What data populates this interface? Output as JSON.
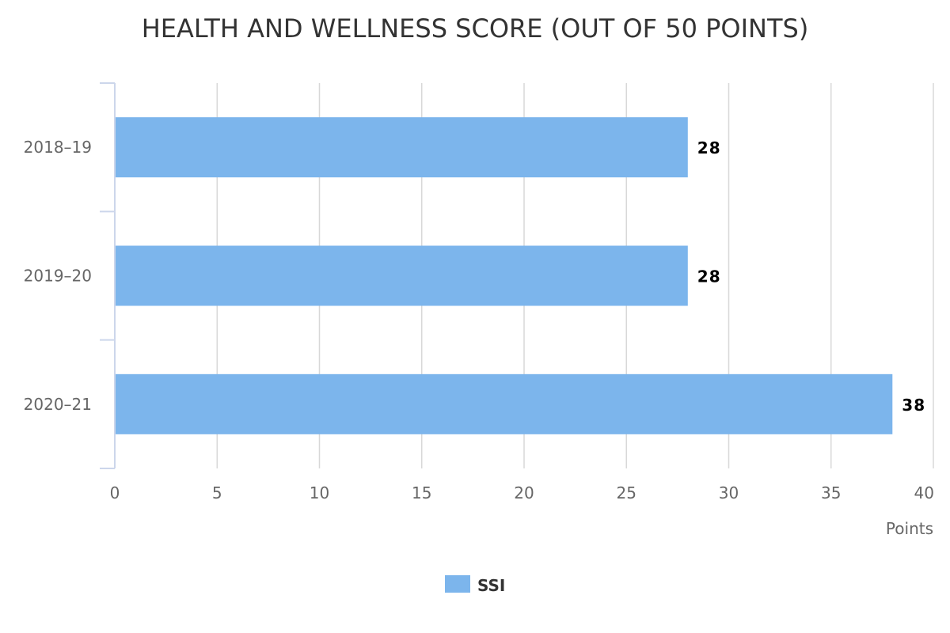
{
  "chart_data": {
    "type": "bar",
    "orientation": "horizontal",
    "title": "HEALTH AND WELLNESS SCORE (OUT OF 50 POINTS)",
    "categories": [
      "2018–19",
      "2019–20",
      "2020–21"
    ],
    "series": [
      {
        "name": "SSI",
        "values": [
          28,
          28,
          38
        ],
        "color": "#7cb5ec"
      }
    ],
    "x_ticks": [
      "0",
      "5",
      "10",
      "15",
      "20",
      "25",
      "30",
      "35",
      "40"
    ],
    "xlim": [
      0,
      40
    ],
    "xlabel": "Points",
    "grid": true,
    "data_labels": true,
    "legend_position": "bottom-center"
  }
}
